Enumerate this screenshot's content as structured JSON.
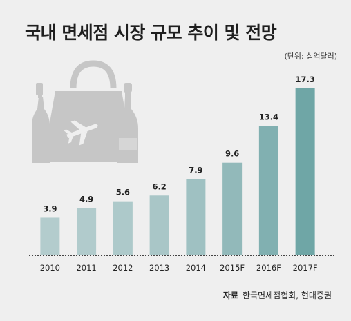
{
  "header": {
    "title": "국내 면세점 시장 규모 추이 및 전망",
    "unit": "(단위: 십억달러)"
  },
  "footer": {
    "source_label": "자료",
    "source_text": "한국면세점협회, 현대증권"
  },
  "illustration": {
    "icons": [
      "wine-bottle-icon",
      "shopping-bag-icon",
      "airplane-icon",
      "champagne-bottle-icon"
    ],
    "color": "#c6c6c6"
  },
  "chart_data": {
    "type": "bar",
    "categories": [
      "2010",
      "2011",
      "2012",
      "2013",
      "2014",
      "2015F",
      "2016F",
      "2017F"
    ],
    "values": [
      3.9,
      4.9,
      5.6,
      6.2,
      7.9,
      9.6,
      13.4,
      17.3
    ],
    "value_labels": [
      "3.9",
      "4.9",
      "5.6",
      "6.2",
      "7.9",
      "9.6",
      "13.4",
      "17.3"
    ],
    "title": "국내 면세점 시장 규모 추이 및 전망",
    "ylabel": "",
    "xlabel": "",
    "ylim": [
      0,
      17.3
    ],
    "grid": false,
    "colors": [
      "#b3cccd",
      "#b1cbcc",
      "#adc9ca",
      "#a9c6c7",
      "#9fc1c2",
      "#92b9ba",
      "#81b0b1",
      "#6fa6a6"
    ]
  }
}
